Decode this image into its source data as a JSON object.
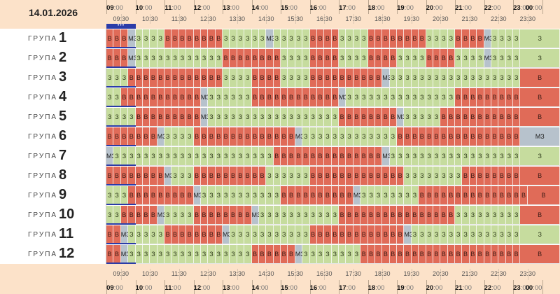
{
  "header": {
    "date": "14.01.2026",
    "now_marker": "•••"
  },
  "hours": [
    "09",
    "10",
    "11",
    "12",
    "13",
    "14",
    "15",
    "16",
    "17",
    "18",
    "19",
    "20",
    "21",
    "22",
    "23",
    "00"
  ],
  "hour_minutes": ":00",
  "half_labels": [
    "09:30",
    "10:30",
    "11:30",
    "12:30",
    "13:30",
    "14:30",
    "15:30",
    "16:30",
    "17:30",
    "18:30",
    "19:30",
    "20:30",
    "21:30",
    "22:30",
    "23:30"
  ],
  "row_prefix": "ГРУПА",
  "status_legend": {
    "B": {
      "text": "В",
      "color": "#e06b58"
    },
    "Z": {
      "text": "З",
      "color": "#c6dc9e"
    },
    "M": {
      "text": "МЗ",
      "color": "#b7c2cc"
    }
  },
  "groups": [
    {
      "num": "1",
      "slots": "BBBMZZZZBBBBBBBBZZZZZZMZZZZZBBBBZZZZBBBBBBBBZZZZBBBBMZZZZZ"
    },
    {
      "num": "2",
      "slots": "BBBMZZZZZZZZZZZZBBBBBBBBZZZZBBBBZZZZBBBBZZZZBBBBZZZZMZZZZZ"
    },
    {
      "num": "3",
      "slots": "ZZZBBBBBBBBBBBBBZZZZBBBBZZZZBBBBBBBBBBMZZZZZZZZZZZZZZZZZZB"
    },
    {
      "num": "4",
      "slots": "ZZBBBBBBBBBBBMZZZZZZBBBBBBBBBBBBMZZZZZZZZZZZZZZZBBBBBBBBBB"
    },
    {
      "num": "5",
      "slots": "ZZZZBBBBBBBBBMZZZZZZZZZZZZZZZZZZBBBBBBBBMZZZZZBBBBBBBBBBBB"
    },
    {
      "num": "6",
      "slots": "BBBBBBBMZZZZBBBBBBBBBBBBBBMZZZZZZZZZZZZZBBBBBBBBBBBBBBBBBM"
    },
    {
      "num": "7",
      "slots": "MZZZZZZZZZZZZZZZZZZZZZZBBBBBBBBBBBBBBBMZZZZZZZZZZZZZZZZZZZ"
    },
    {
      "num": "8",
      "slots": "BBBBBBBBMZZZBBBBBBBBBBZZZZZZBBBBBBBBBBBBBZZZZZZZZBBBBBBBBB"
    },
    {
      "num": "9",
      "slots": "ZZZBBBBBBBBBMZZZZZZZZZZZBBBBBBBBBBMZZZZZZZZBBBBBBBBBBBBBBBB"
    },
    {
      "num": "10",
      "slots": "ZZBBBBBMZZZZBBBBBBBBMZZZZZZZZZZZBBBBBBBBBBBBBBBBZZZZZZZZZB"
    },
    {
      "num": "11",
      "slots": "BBMZZZZZBBBBBBBBMZZZZZZZZZZZBBBBBBBBBBBBBMZZZZZZZZZZZZZZZZ"
    },
    {
      "num": "12",
      "slots": "BBMZZZZZZZZZZZZZZZZZBBBBBBMZZZZZZZZBBBBBBBBBBBBBBBBBBBBBBB"
    }
  ]
}
